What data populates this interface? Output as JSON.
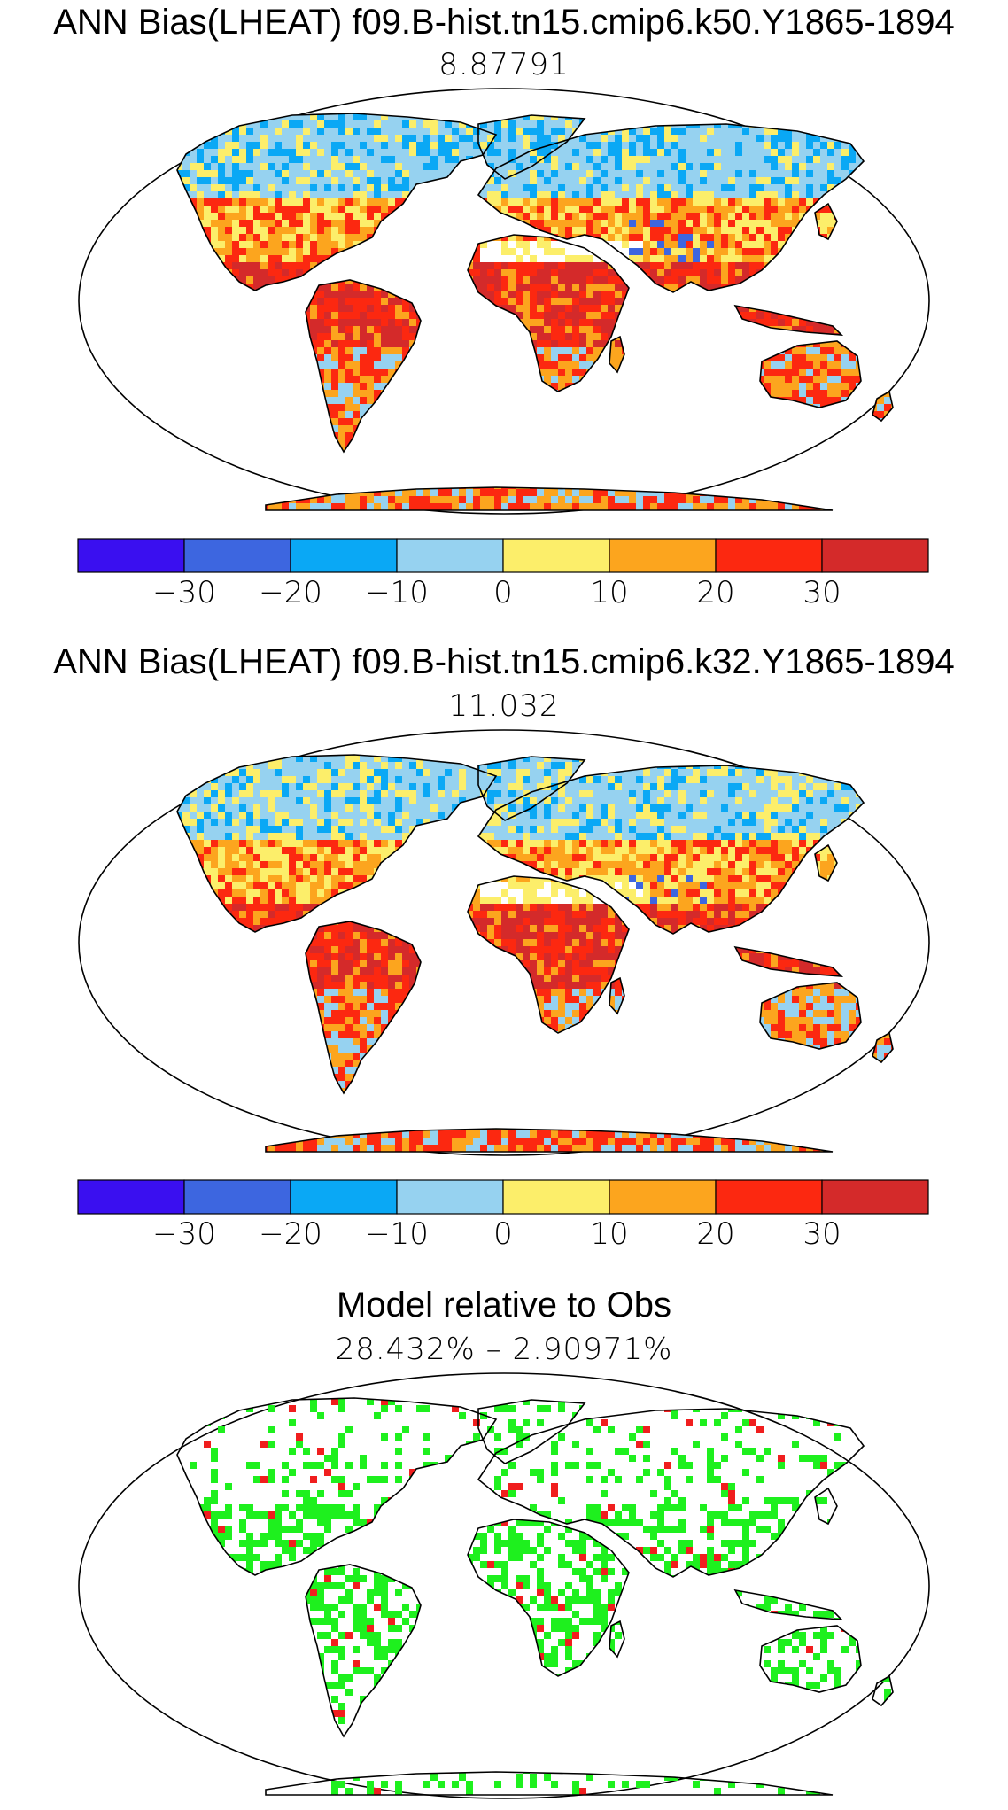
{
  "panels": [
    {
      "title": "ANN Bias(LHEAT) f09.B-hist.tn15.cmip6.k50.Y1865-1894",
      "subtitle": "8.87791"
    },
    {
      "title": "ANN Bias(LHEAT) f09.B-hist.tn15.cmip6.k32.Y1865-1894",
      "subtitle": "11.032"
    },
    {
      "title": "Model relative to Obs",
      "subtitle": "28.432% – 2.90971%"
    }
  ],
  "colorbar": {
    "colors": [
      "#3a0ff0",
      "#3d66e0",
      "#0aa8f5",
      "#96d2f0",
      "#fcee6a",
      "#fca51e",
      "#fc2810",
      "#d42a2a"
    ],
    "tick_labels": [
      "−30",
      "−20",
      "−10",
      "0",
      "10",
      "20",
      "30"
    ]
  },
  "legend_colors": {
    "relative_better": "#1ef01e",
    "relative_worse": "#f01e1e"
  }
}
